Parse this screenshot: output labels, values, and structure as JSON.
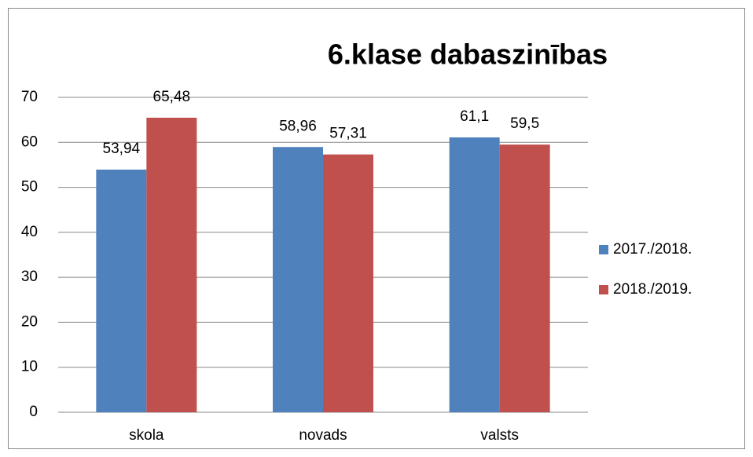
{
  "chart_data": {
    "type": "bar",
    "title": "6.klase dabaszinības",
    "categories": [
      "skola",
      "novads",
      "valsts"
    ],
    "series": [
      {
        "name": "2017./2018.",
        "color": "#4f81bd",
        "values": [
          53.94,
          58.96,
          61.1
        ],
        "value_labels": [
          "53,94",
          "58,96",
          "61,1"
        ]
      },
      {
        "name": "2018./2019.",
        "color": "#c0504d",
        "values": [
          65.48,
          57.31,
          59.5
        ],
        "value_labels": [
          "65,48",
          "57,31",
          "59,5"
        ]
      }
    ],
    "ylim": [
      0,
      70
    ],
    "yticks": [
      0,
      10,
      20,
      30,
      40,
      50,
      60,
      70
    ],
    "grid": true,
    "legend": "right"
  }
}
